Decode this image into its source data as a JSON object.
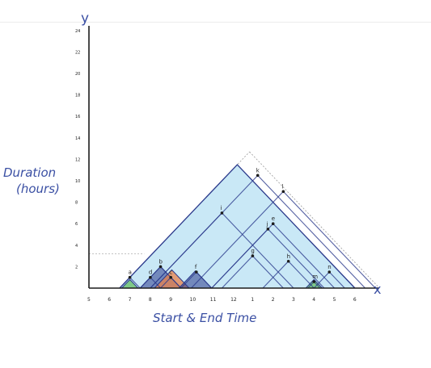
{
  "axis": {
    "y_letter": "y",
    "x_letter": "x",
    "y_label_line1": "Duration",
    "y_label_line2": "(hours)",
    "x_label": "Start & End Time",
    "y_ticks": [
      "2",
      "4",
      "6",
      "8",
      "10",
      "12",
      "14",
      "16",
      "18",
      "20",
      "22",
      "24"
    ],
    "x_ticks": [
      "5",
      "6",
      "7",
      "8",
      "9",
      "10",
      "11",
      "12",
      "1",
      "2",
      "3",
      "4",
      "5",
      "6"
    ]
  },
  "points": [
    {
      "label": "a",
      "start": 6.5,
      "end": 7.5
    },
    {
      "label": "b",
      "start": 7.5,
      "end": 9.5
    },
    {
      "label": "c",
      "start": 8.5,
      "end": 9.5
    },
    {
      "label": "d",
      "start": 7.5,
      "end": 8.5
    },
    {
      "label": "e",
      "start": 11.0,
      "end": 17.0
    },
    {
      "label": "f",
      "start": 9.5,
      "end": 11.0
    },
    {
      "label": "g",
      "start": 11.5,
      "end": 14.5
    },
    {
      "label": "h",
      "start": 13.5,
      "end": 16.0
    },
    {
      "label": "i",
      "start": 8.0,
      "end": 15.0
    },
    {
      "label": "j",
      "start": 11.0,
      "end": 16.5
    },
    {
      "label": "k",
      "start": 8.0,
      "end": 18.5
    },
    {
      "label": "l",
      "start": 10.0,
      "end": 19.0
    },
    {
      "label": "m",
      "start": 15.7,
      "end": 16.3
    },
    {
      "label": "n",
      "start": 16.0,
      "end": 17.5
    }
  ],
  "colors": {
    "ink": "#1c1c1c",
    "navy": "#2b3a8c",
    "label_blue": "#3a4fa3",
    "light_blue": "#7fc8ea",
    "orange": "#e8824a",
    "green": "#6cc06c"
  }
}
